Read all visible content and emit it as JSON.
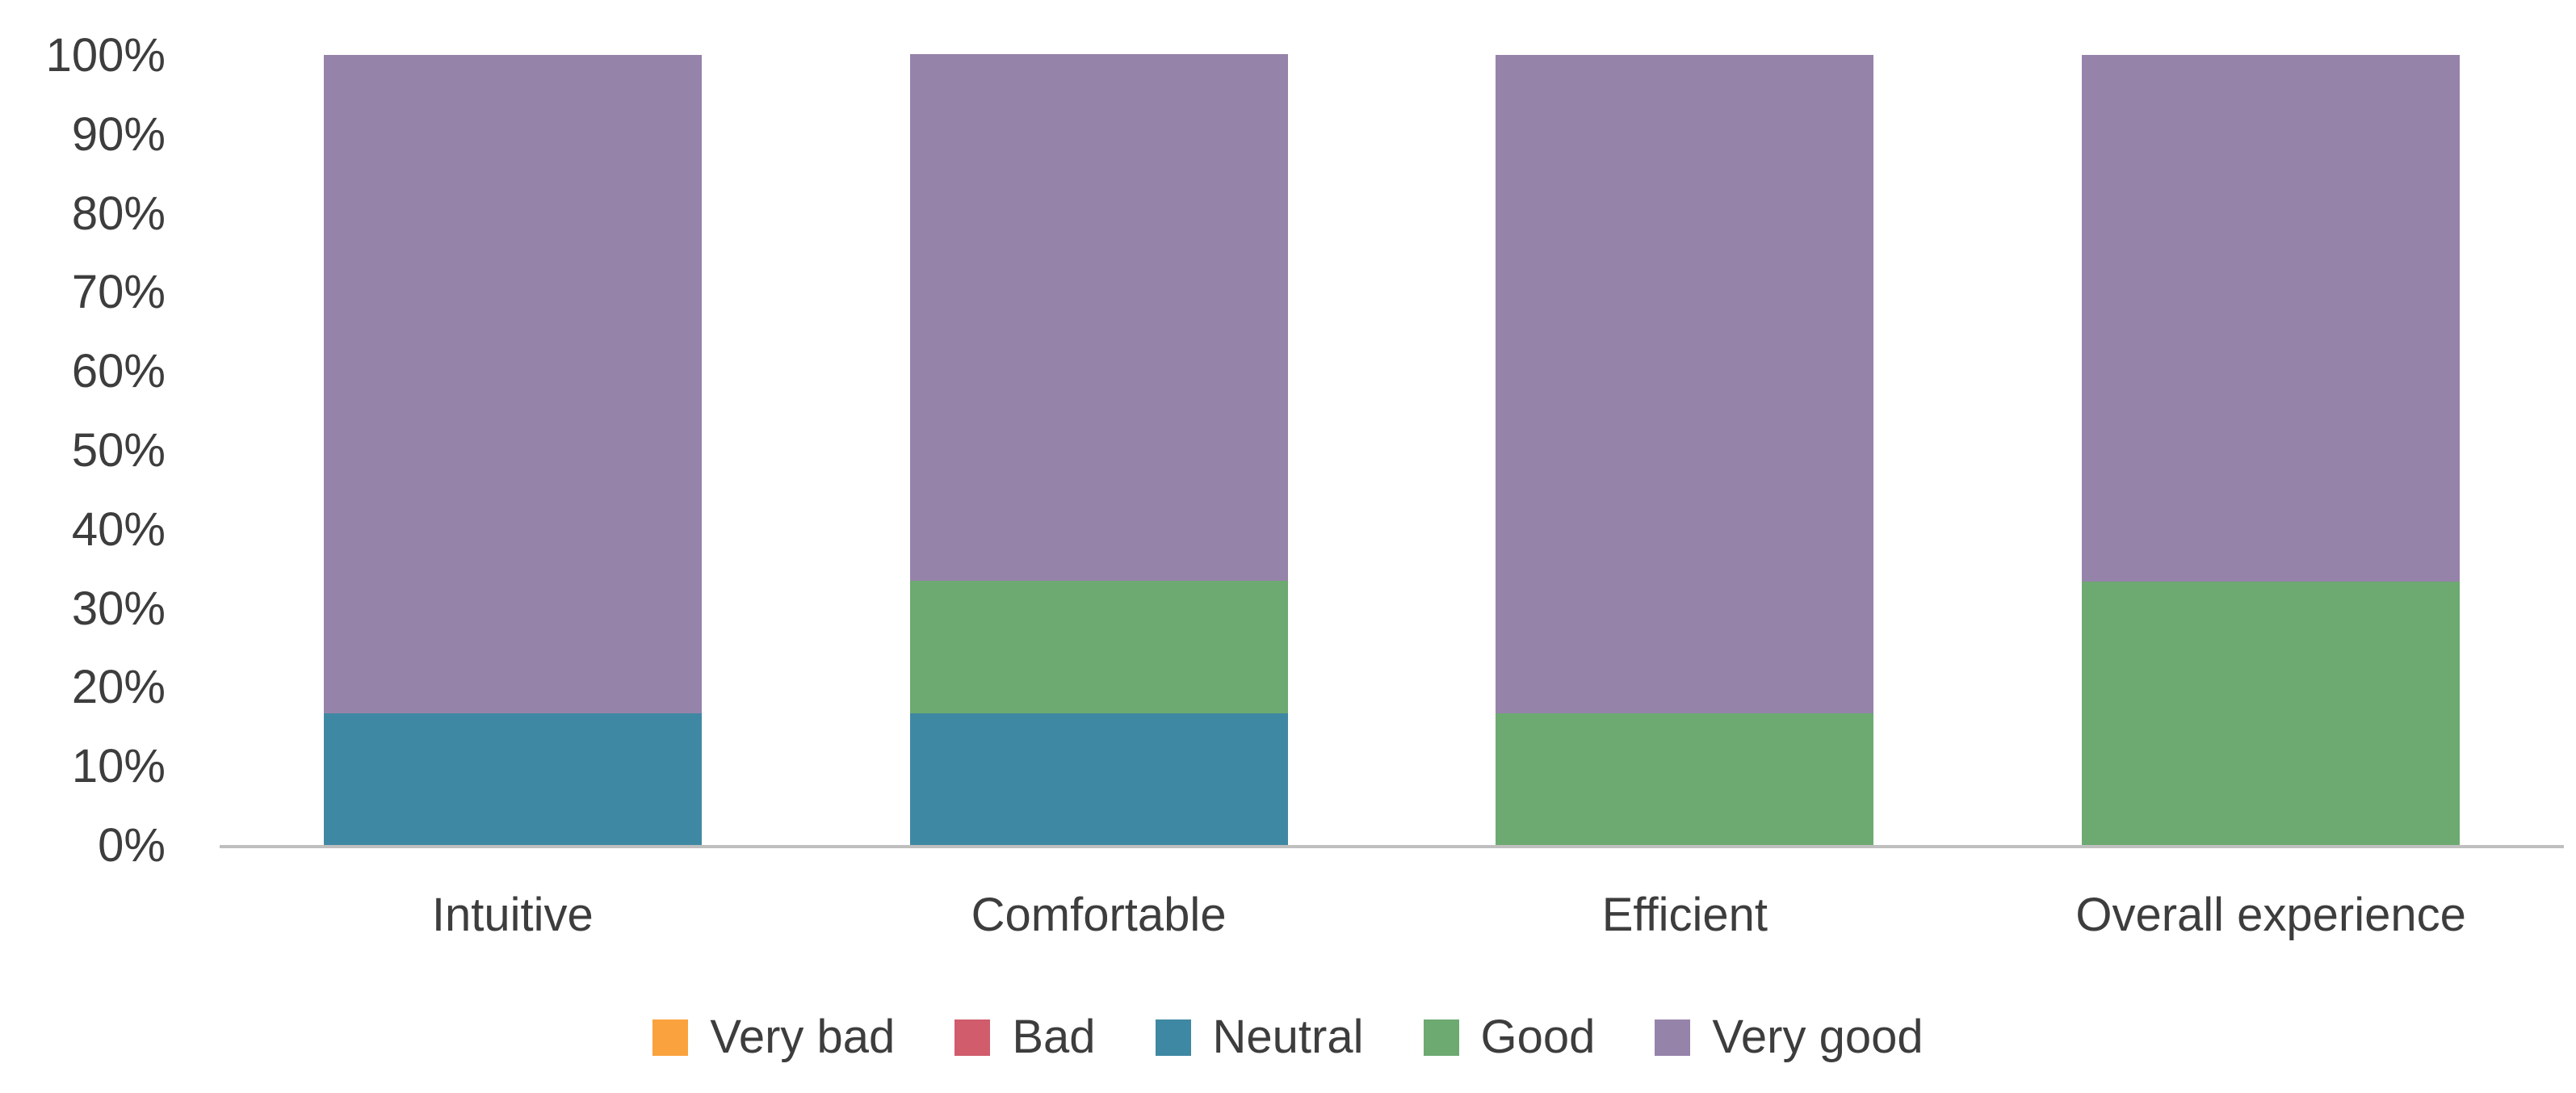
{
  "chart_data": {
    "type": "bar",
    "subtype": "stacked-100",
    "orientation": "vertical",
    "title": "",
    "xlabel": "",
    "ylabel": "",
    "categories": [
      "Intuitive",
      "Comfortable",
      "Efficient",
      "Overall experience"
    ],
    "series": [
      {
        "name": "Very bad",
        "color": "#FAA23D",
        "values": [
          0,
          0,
          0,
          0
        ]
      },
      {
        "name": "Bad",
        "color": "#D05C6C",
        "values": [
          0,
          0,
          0,
          0
        ]
      },
      {
        "name": "Neutral",
        "color": "#3F88A3",
        "values": [
          16.7,
          16.7,
          0,
          0
        ]
      },
      {
        "name": "Good",
        "color": "#6DAA71",
        "values": [
          0,
          16.7,
          16.7,
          33.3
        ]
      },
      {
        "name": "Very good",
        "color": "#9683A9",
        "values": [
          83.3,
          66.7,
          83.3,
          66.7
        ]
      }
    ],
    "ylim": [
      0,
      100
    ],
    "ytick_step": 10,
    "ytick_labels": [
      "0%",
      "10%",
      "20%",
      "30%",
      "40%",
      "50%",
      "60%",
      "70%",
      "80%",
      "90%",
      "100%"
    ],
    "grid": false,
    "legend_position": "bottom"
  },
  "colors": {
    "background": "#FFFFFF",
    "text": "#3D3D3D",
    "axis_line": "#BFBFBF"
  }
}
